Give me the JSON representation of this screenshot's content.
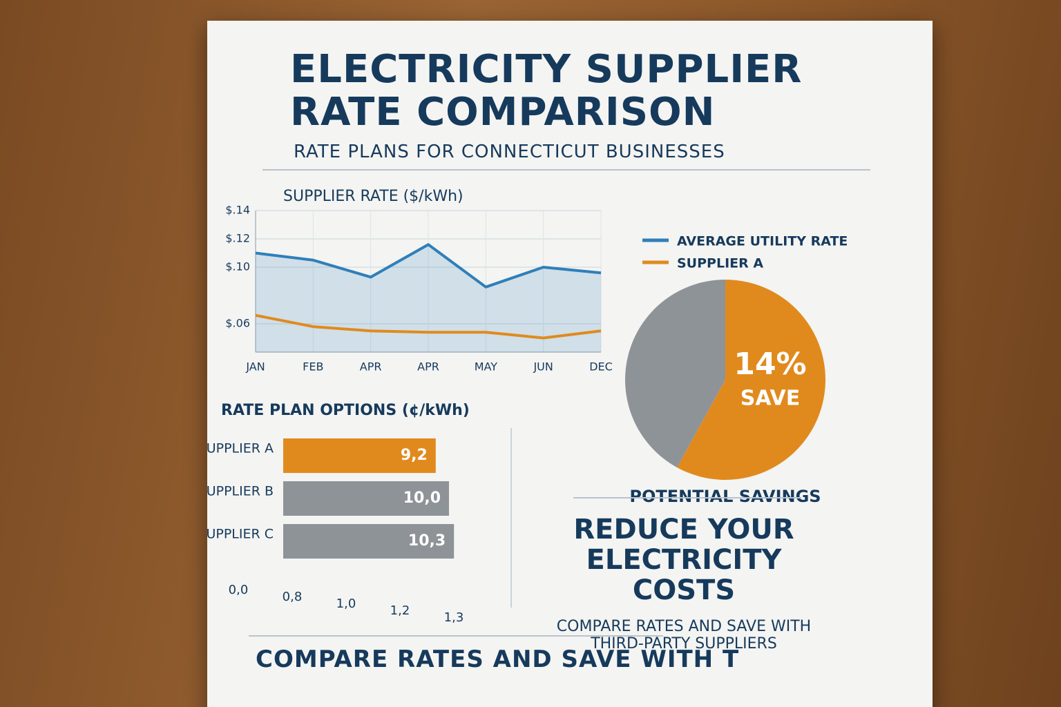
{
  "title": "ELECTRICITY SUPPLIER RATE COMPARISON",
  "subtitle": "RATE PLANS FOR CONNECTICUT BUSINESSES",
  "line_chart": {
    "type": "line",
    "title": "SUPPLIER RATE ($/kWh)",
    "categories": [
      "JAN",
      "FEB",
      "APR",
      "APR",
      "MAY",
      "JUN",
      "DEC"
    ],
    "series": [
      {
        "name": "AVERAGE UTILITY RATE",
        "color": "#2f7fba",
        "values": [
          0.11,
          0.105,
          0.093,
          0.116,
          0.086,
          0.1,
          0.096
        ]
      },
      {
        "name": "SUPPLIER A",
        "color": "#e08a1e",
        "values": [
          0.066,
          0.058,
          0.055,
          0.054,
          0.054,
          0.05,
          0.055
        ]
      }
    ],
    "ylim": [
      0.04,
      0.14
    ],
    "yticks": [
      {
        "value": 0.14,
        "label": "$.14"
      },
      {
        "value": 0.12,
        "label": "$.12"
      },
      {
        "value": 0.1,
        "label": "$.10"
      },
      {
        "value": 0.06,
        "label": "$.06"
      }
    ],
    "grid": true
  },
  "pie_chart": {
    "type": "pie",
    "values": [
      58,
      42
    ],
    "colors": [
      "#e08a1e",
      "#8e9398"
    ],
    "label": "14%",
    "sublabel": "SAVE",
    "caption": "POTENTIAL SAVINGS"
  },
  "bar_chart": {
    "type": "bar",
    "title": "RATE PLAN OPTIONS (¢/kWh)",
    "categories": [
      "SUPPLIER A",
      "SUPPLIER B",
      "SUPPLIER C"
    ],
    "values": [
      9.2,
      10.0,
      10.3
    ],
    "value_labels": [
      "9,2",
      "10,0",
      "10,3"
    ],
    "colors": [
      "#e08a1e",
      "#8e9398",
      "#8e9398"
    ],
    "axis_labels": [
      "0,0",
      "0,8",
      "1,0",
      "1,2",
      "1,3"
    ]
  },
  "callout": {
    "heading": "REDUCE YOUR ELECTRICITY COSTS",
    "text": "COMPARE RATES AND SAVE WITH THIRD-PARTY SUPPLIERS"
  },
  "footer": "COMPARE RATES AND SAVE WITH T"
}
